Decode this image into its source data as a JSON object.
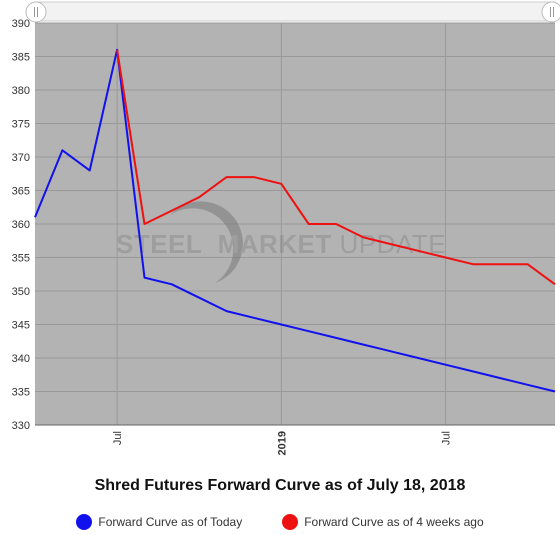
{
  "chart_data": {
    "type": "line",
    "title": "Shred Futures Forward Curve as of July 18, 2018",
    "xlabel": "",
    "ylabel": "",
    "ylim": [
      330,
      390
    ],
    "yticks": [
      330,
      335,
      340,
      345,
      350,
      355,
      360,
      365,
      370,
      375,
      380,
      385,
      390
    ],
    "x_tick_labels": [
      {
        "label": "Jul",
        "month_index": 3,
        "bold": false
      },
      {
        "label": "2019",
        "month_index": 9,
        "bold": true
      },
      {
        "label": "Jul",
        "month_index": 15,
        "bold": false
      }
    ],
    "grid": true,
    "legend_position": "bottom",
    "series": [
      {
        "name": "Forward Curve as of Today",
        "color": "#1111ee",
        "points": [
          {
            "month_index": 0,
            "value": 361
          },
          {
            "month_index": 1,
            "value": 371
          },
          {
            "month_index": 2,
            "value": 368
          },
          {
            "month_index": 3,
            "value": 386
          },
          {
            "month_index": 4,
            "value": 352
          },
          {
            "month_index": 5,
            "value": 351
          },
          {
            "month_index": 6,
            "value": 349
          },
          {
            "month_index": 7,
            "value": 347
          },
          {
            "month_index": 8,
            "value": 346
          },
          {
            "month_index": 9,
            "value": 345
          },
          {
            "month_index": 10,
            "value": 344
          },
          {
            "month_index": 11,
            "value": 343
          },
          {
            "month_index": 12,
            "value": 342
          },
          {
            "month_index": 13,
            "value": 341
          },
          {
            "month_index": 14,
            "value": 340
          },
          {
            "month_index": 15,
            "value": 339
          },
          {
            "month_index": 16,
            "value": 338
          },
          {
            "month_index": 17,
            "value": 337
          },
          {
            "month_index": 18,
            "value": 336
          },
          {
            "month_index": 19,
            "value": 335
          }
        ]
      },
      {
        "name": "Forward Curve as of 4 weeks ago",
        "color": "#ee1111",
        "points": [
          {
            "month_index": 3,
            "value": 386
          },
          {
            "month_index": 4,
            "value": 360
          },
          {
            "month_index": 5,
            "value": 362
          },
          {
            "month_index": 6,
            "value": 364
          },
          {
            "month_index": 7,
            "value": 367
          },
          {
            "month_index": 8,
            "value": 367
          },
          {
            "month_index": 9,
            "value": 366
          },
          {
            "month_index": 10,
            "value": 360
          },
          {
            "month_index": 11,
            "value": 360
          },
          {
            "month_index": 12,
            "value": 358
          },
          {
            "month_index": 13,
            "value": 357
          },
          {
            "month_index": 14,
            "value": 356
          },
          {
            "month_index": 15,
            "value": 355
          },
          {
            "month_index": 16,
            "value": 354
          },
          {
            "month_index": 17,
            "value": 354
          },
          {
            "month_index": 18,
            "value": 354
          },
          {
            "month_index": 19,
            "value": 351
          }
        ]
      }
    ]
  },
  "watermark": {
    "word1": "STEEL",
    "word2": "MARKET",
    "word3": "UPDATE"
  },
  "colors": {
    "plot_background": "#b3b3b3",
    "gridline": "#999999"
  }
}
